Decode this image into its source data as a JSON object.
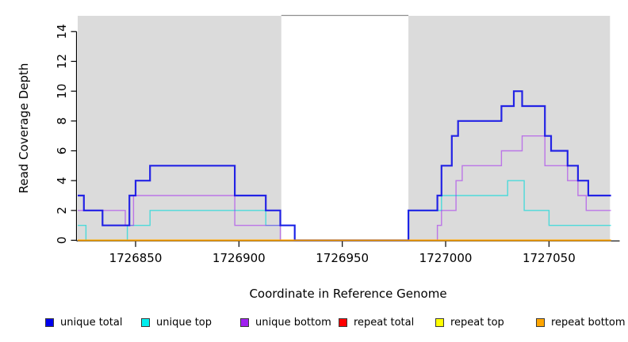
{
  "page": {
    "background": "#FFFFFF"
  },
  "chart_data": {
    "type": "line",
    "subtype": "step",
    "title": "",
    "xlabel": "Coordinate in Reference Genome",
    "ylabel": "Read Coverage Depth",
    "xlim": [
      1726822,
      1727084
    ],
    "data_xmax": 1727080,
    "ylim": [
      0,
      15
    ],
    "x_ticks": [
      1726850,
      1726900,
      1726950,
      1727000,
      1727050
    ],
    "y_ticks": [
      0,
      2,
      4,
      6,
      8,
      10,
      12,
      14
    ],
    "grid": false,
    "legend_position": "bottom",
    "axis_color": "#000000",
    "shade_color": "#DBDBDB",
    "gap_top_border_color": "#8F8F8F",
    "shaded_regions": [
      {
        "from": 1726822,
        "to": 1726920.5
      },
      {
        "from": 1726982,
        "to": 1727079.5
      }
    ],
    "series": [
      {
        "label": "unique total",
        "color": "#1414E6",
        "swatch_color": "#0000EE",
        "line_width": 2.2,
        "opacity": 0.92,
        "points": [
          [
            1726822,
            3
          ],
          [
            1726825,
            2
          ],
          [
            1726834,
            1
          ],
          [
            1726847,
            3
          ],
          [
            1726850,
            4
          ],
          [
            1726857,
            5
          ],
          [
            1726898,
            3
          ],
          [
            1726913,
            2
          ],
          [
            1726920,
            1
          ],
          [
            1726927,
            0
          ],
          [
            1726982,
            2
          ],
          [
            1726996,
            3
          ],
          [
            1726998,
            5
          ],
          [
            1727003,
            7
          ],
          [
            1727006,
            8
          ],
          [
            1727027,
            9
          ],
          [
            1727033,
            10
          ],
          [
            1727037,
            9
          ],
          [
            1727048,
            7
          ],
          [
            1727051,
            6
          ],
          [
            1727059,
            5
          ],
          [
            1727064,
            4
          ],
          [
            1727069,
            3
          ]
        ]
      },
      {
        "label": "unique top",
        "color": "#00DADA",
        "swatch_color": "#00EEEE",
        "line_width": 1.4,
        "opacity": 0.65,
        "points": [
          [
            1726822,
            1
          ],
          [
            1726826,
            0
          ],
          [
            1726846,
            1
          ],
          [
            1726857,
            2
          ],
          [
            1726913,
            1
          ],
          [
            1726927,
            0
          ],
          [
            1726982,
            2
          ],
          [
            1726998,
            3
          ],
          [
            1727030,
            4
          ],
          [
            1727038,
            2
          ],
          [
            1727050,
            1
          ]
        ]
      },
      {
        "label": "unique bottom",
        "color": "#A020F0",
        "swatch_color": "#A020F0",
        "line_width": 1.4,
        "opacity": 0.55,
        "points": [
          [
            1726822,
            2
          ],
          [
            1726845,
            1
          ],
          [
            1726849,
            3
          ],
          [
            1726898,
            1
          ],
          [
            1726920,
            0
          ],
          [
            1726996,
            1
          ],
          [
            1726998,
            2
          ],
          [
            1727005,
            4
          ],
          [
            1727008,
            5
          ],
          [
            1727027,
            6
          ],
          [
            1727037,
            7
          ],
          [
            1727048,
            5
          ],
          [
            1727059,
            4
          ],
          [
            1727064,
            3
          ],
          [
            1727068,
            2
          ]
        ]
      },
      {
        "label": "repeat total",
        "color": "#EE0000",
        "swatch_color": "#FF0000",
        "line_width": 1.4,
        "opacity": 0.9,
        "points": [
          [
            1726822,
            0
          ]
        ]
      },
      {
        "label": "repeat top",
        "color": "#FFFF00",
        "swatch_color": "#FFFF00",
        "line_width": 1.4,
        "opacity": 0.9,
        "points": [
          [
            1726822,
            0
          ]
        ]
      },
      {
        "label": "repeat bottom",
        "color": "#FFA500",
        "swatch_color": "#FFA500",
        "line_width": 1.8,
        "opacity": 1.0,
        "points": [
          [
            1726822,
            0
          ]
        ]
      }
    ],
    "draw_order": [
      3,
      4,
      1,
      2,
      0,
      5
    ]
  }
}
